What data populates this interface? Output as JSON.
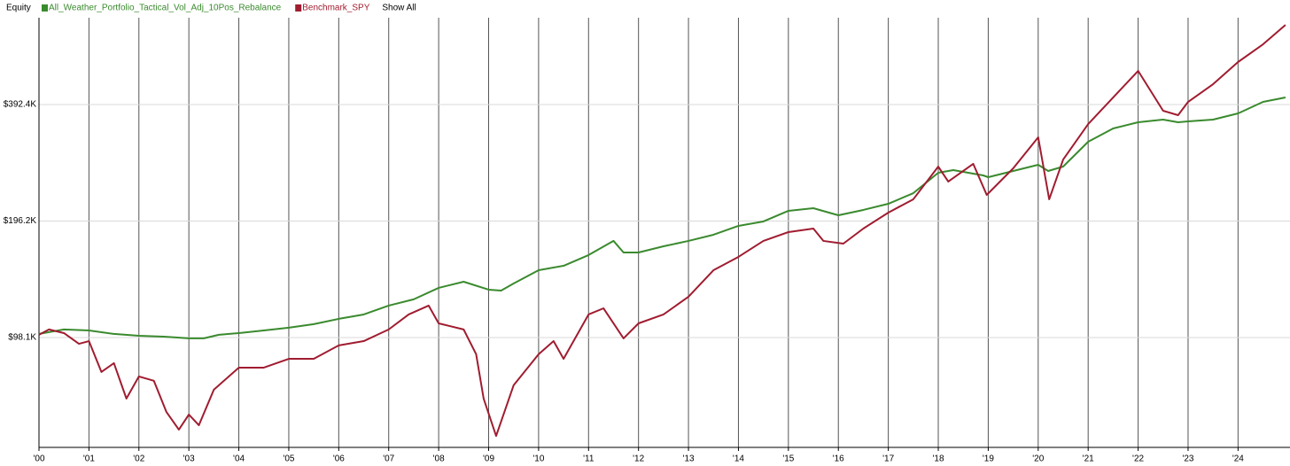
{
  "chart_data": {
    "type": "line",
    "title": "Equity",
    "legend_action": "Show All",
    "log_scale": true,
    "grid": true,
    "xlim": [
      2000,
      2025.04
    ],
    "xticks": [
      {
        "value": 2000,
        "label": "'00"
      },
      {
        "value": 2001,
        "label": "'01"
      },
      {
        "value": 2002,
        "label": "'02"
      },
      {
        "value": 2003,
        "label": "'03"
      },
      {
        "value": 2004,
        "label": "'04"
      },
      {
        "value": 2005,
        "label": "'05"
      },
      {
        "value": 2006,
        "label": "'06"
      },
      {
        "value": 2007,
        "label": "'07"
      },
      {
        "value": 2008,
        "label": "'08"
      },
      {
        "value": 2009,
        "label": "'09"
      },
      {
        "value": 2010,
        "label": "'10"
      },
      {
        "value": 2011,
        "label": "'11"
      },
      {
        "value": 2012,
        "label": "'12"
      },
      {
        "value": 2013,
        "label": "'13"
      },
      {
        "value": 2014,
        "label": "'14"
      },
      {
        "value": 2015,
        "label": "'15"
      },
      {
        "value": 2016,
        "label": "'16"
      },
      {
        "value": 2017,
        "label": "'17"
      },
      {
        "value": 2018,
        "label": "'18"
      },
      {
        "value": 2019,
        "label": "'19"
      },
      {
        "value": 2020,
        "label": "'20"
      },
      {
        "value": 2021,
        "label": "'21"
      },
      {
        "value": 2022,
        "label": "'22"
      },
      {
        "value": 2023,
        "label": "'23"
      },
      {
        "value": 2024,
        "label": "'24"
      }
    ],
    "ylim": [
      51000,
      658000
    ],
    "yticks": [
      {
        "value": 98100,
        "label": "$98.1K"
      },
      {
        "value": 196200,
        "label": "$196.2K"
      },
      {
        "value": 392400,
        "label": "$392.4K"
      }
    ],
    "series": [
      {
        "name": "All_Weather_Portfolio_Tactical_Vol_Adj_10Pos_Rebalance",
        "color": "#3a8a2e",
        "x": [
          2000,
          2000.5,
          2001,
          2001.5,
          2002,
          2002.5,
          2003,
          2003.3,
          2003.6,
          2004,
          2004.5,
          2005,
          2005.5,
          2006,
          2006.5,
          2007,
          2007.5,
          2008,
          2008.5,
          2009,
          2009.25,
          2009.5,
          2010,
          2010.5,
          2011,
          2011.5,
          2011.7,
          2012,
          2012.5,
          2013,
          2013.5,
          2014,
          2014.5,
          2015,
          2015.5,
          2016,
          2016.5,
          2017,
          2017.5,
          2018,
          2018.3,
          2018.9,
          2019,
          2019.5,
          2020,
          2020.2,
          2020.5,
          2021,
          2021.5,
          2022,
          2022.5,
          2022.8,
          2023,
          2023.5,
          2024,
          2024.5,
          2024.95
        ],
        "values": [
          100200,
          102900,
          102300,
          100200,
          99100,
          98600,
          97600,
          97600,
          99700,
          100700,
          102300,
          104000,
          106200,
          109600,
          112500,
          118600,
          123100,
          131800,
          136700,
          130400,
          129700,
          135300,
          146400,
          150300,
          160200,
          174300,
          162700,
          162700,
          168800,
          174300,
          180800,
          190600,
          195700,
          208500,
          211800,
          203000,
          209600,
          217400,
          231600,
          261500,
          265700,
          257400,
          254700,
          264300,
          274200,
          264300,
          271300,
          314500,
          340400,
          353200,
          358800,
          353200,
          355000,
          358800,
          372300,
          398700,
          409300
        ]
      },
      {
        "name": "Benchmark_SPY",
        "color": "#a01c30",
        "x": [
          2000,
          2000.2,
          2000.5,
          2000.8,
          2001,
          2001.25,
          2001.5,
          2001.75,
          2002,
          2002.3,
          2002.55,
          2002.8,
          2003,
          2003.2,
          2003.5,
          2004,
          2004.5,
          2005,
          2005.5,
          2006,
          2006.5,
          2007,
          2007.4,
          2007.8,
          2008,
          2008.5,
          2008.75,
          2008.9,
          2009.15,
          2009.5,
          2010,
          2010.3,
          2010.5,
          2011,
          2011.3,
          2011.7,
          2012,
          2012.5,
          2013,
          2013.5,
          2014,
          2014.5,
          2015,
          2015.5,
          2015.7,
          2016.1,
          2016.5,
          2017,
          2017.5,
          2018,
          2018.2,
          2018.7,
          2018.97,
          2019.5,
          2020,
          2020.22,
          2020.5,
          2021,
          2021.5,
          2022,
          2022.5,
          2022.8,
          2023,
          2023.5,
          2024,
          2024.5,
          2024.95
        ],
        "values": [
          99700,
          102900,
          100700,
          94500,
          96000,
          79900,
          84200,
          68200,
          77800,
          75800,
          63000,
          56700,
          62000,
          58200,
          71900,
          82000,
          82000,
          86400,
          86400,
          93600,
          96000,
          102900,
          112500,
          118600,
          106700,
          102900,
          88800,
          68200,
          54600,
          73800,
          88800,
          96000,
          86400,
          112500,
          116700,
          97600,
          106700,
          112500,
          125000,
          146400,
          158500,
          174300,
          183700,
          187600,
          174300,
          171500,
          187600,
          206300,
          223300,
          271300,
          248100,
          275700,
          229200,
          268500,
          322900,
          223300,
          283000,
          349400,
          409300,
          479500,
          378200,
          368400,
          398700,
          443000,
          505400,
          561600,
          630600
        ]
      }
    ]
  }
}
